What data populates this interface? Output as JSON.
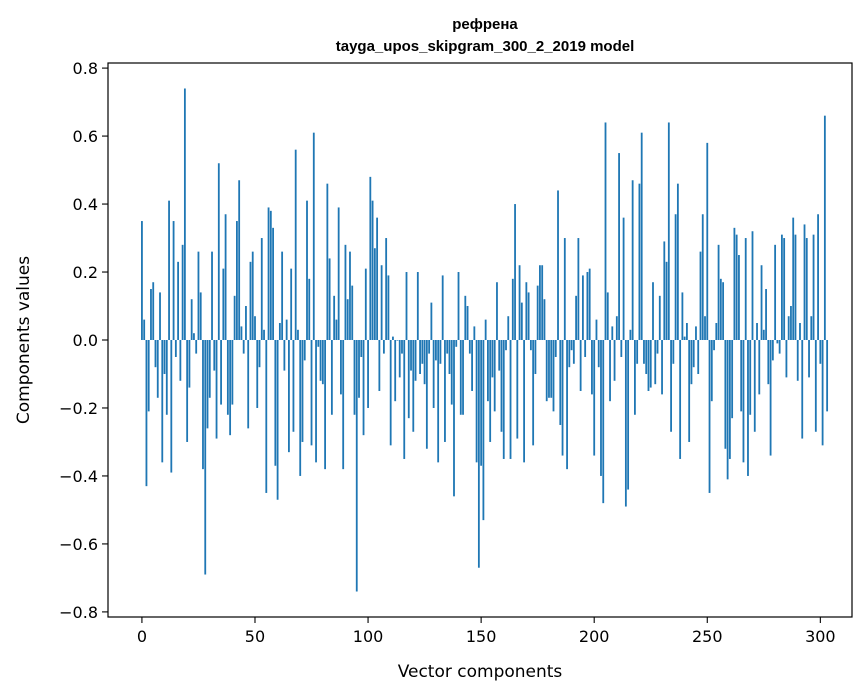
{
  "chart_data": {
    "type": "bar",
    "title": "рефрена",
    "subtitle": "tayga_upos_skipgram_300_2_2019 model",
    "xlabel": "Vector components",
    "ylabel": "Components values",
    "xlim": [
      -15,
      314
    ],
    "ylim": [
      -0.815,
      0.815
    ],
    "xticks": [
      0,
      50,
      100,
      150,
      200,
      250,
      300
    ],
    "xtick_labels": [
      "0",
      "50",
      "100",
      "150",
      "200",
      "250",
      "300"
    ],
    "yticks": [
      -0.8,
      -0.6,
      -0.4,
      -0.2,
      0.0,
      0.2,
      0.4,
      0.6,
      0.8
    ],
    "ytick_labels": [
      "−0.8",
      "−0.6",
      "−0.4",
      "−0.2",
      "0.0",
      "0.2",
      "0.4",
      "0.6",
      "0.8"
    ],
    "bar_color": "#1f77b4",
    "grid": false,
    "x_start": 0,
    "values": [
      0.35,
      0.06,
      -0.43,
      -0.21,
      0.15,
      0.17,
      -0.08,
      -0.17,
      0.14,
      -0.36,
      -0.1,
      -0.22,
      0.41,
      -0.39,
      0.35,
      -0.05,
      0.23,
      -0.12,
      0.28,
      0.74,
      -0.3,
      -0.14,
      0.12,
      0.02,
      -0.04,
      0.26,
      0.14,
      -0.38,
      -0.69,
      -0.26,
      -0.17,
      0.26,
      -0.09,
      -0.29,
      0.52,
      -0.19,
      0.21,
      0.37,
      -0.22,
      -0.28,
      -0.19,
      0.13,
      0.35,
      0.47,
      0.04,
      -0.04,
      0.1,
      -0.26,
      0.23,
      0.26,
      0.07,
      -0.2,
      -0.08,
      0.3,
      0.03,
      -0.45,
      0.39,
      0.38,
      0.33,
      -0.37,
      -0.47,
      0.05,
      0.26,
      -0.09,
      0.06,
      -0.33,
      0.21,
      -0.27,
      0.56,
      0.03,
      -0.4,
      -0.3,
      -0.06,
      0.41,
      0.18,
      -0.31,
      0.61,
      -0.36,
      -0.02,
      -0.12,
      -0.13,
      -0.38,
      0.46,
      0.24,
      -0.22,
      0.13,
      0.06,
      0.39,
      -0.16,
      -0.38,
      0.28,
      0.12,
      0.26,
      0.16,
      -0.22,
      -0.74,
      -0.17,
      -0.05,
      -0.28,
      0.21,
      -0.2,
      0.48,
      0.41,
      0.27,
      0.36,
      -0.15,
      0.22,
      -0.04,
      0.3,
      0.19,
      -0.31,
      0.01,
      -0.18,
      0.0,
      -0.11,
      -0.04,
      -0.35,
      0.2,
      -0.23,
      -0.09,
      -0.27,
      -0.12,
      0.2,
      -0.1,
      -0.07,
      -0.13,
      -0.32,
      -0.04,
      0.11,
      -0.2,
      -0.06,
      -0.36,
      -0.07,
      0.19,
      -0.3,
      -0.04,
      -0.1,
      -0.19,
      -0.46,
      -0.02,
      0.2,
      -0.22,
      -0.22,
      0.13,
      0.1,
      -0.04,
      -0.15,
      0.04,
      -0.36,
      -0.67,
      -0.37,
      -0.53,
      0.06,
      -0.18,
      -0.3,
      -0.11,
      -0.21,
      0.17,
      -0.09,
      -0.27,
      -0.35,
      -0.03,
      0.07,
      -0.35,
      0.18,
      0.4,
      -0.29,
      0.22,
      0.11,
      -0.36,
      0.17,
      0.14,
      -0.03,
      -0.31,
      -0.1,
      0.16,
      0.22,
      0.22,
      0.12,
      -0.18,
      -0.17,
      -0.17,
      -0.21,
      -0.05,
      0.44,
      -0.25,
      -0.34,
      0.3,
      -0.38,
      -0.08,
      -0.03,
      -0.07,
      0.13,
      0.3,
      -0.15,
      0.19,
      -0.05,
      0.2,
      0.21,
      -0.16,
      -0.34,
      0.06,
      -0.08,
      -0.4,
      -0.48,
      0.64,
      0.14,
      -0.18,
      0.04,
      -0.12,
      0.07,
      0.55,
      -0.05,
      0.36,
      -0.49,
      -0.44,
      0.03,
      0.47,
      -0.22,
      -0.07,
      0.46,
      0.61,
      -0.07,
      -0.1,
      -0.15,
      -0.14,
      0.17,
      -0.13,
      -0.04,
      0.13,
      -0.16,
      0.29,
      0.23,
      0.64,
      -0.27,
      -0.07,
      0.37,
      0.46,
      -0.35,
      0.14,
      0.01,
      0.05,
      -0.3,
      -0.13,
      -0.08,
      0.04,
      -0.1,
      0.26,
      0.37,
      0.07,
      0.58,
      -0.45,
      -0.18,
      -0.03,
      0.05,
      0.28,
      0.18,
      0.17,
      -0.32,
      -0.41,
      -0.35,
      -0.23,
      0.33,
      0.31,
      0.25,
      -0.21,
      -0.36,
      0.3,
      -0.4,
      -0.22,
      0.32,
      -0.27,
      0.05,
      -0.16,
      0.22,
      0.03,
      0.15,
      -0.13,
      -0.34,
      -0.06,
      0.28,
      -0.01,
      -0.04,
      0.31,
      0.3,
      -0.11,
      0.07,
      0.1,
      0.36,
      0.31,
      -0.12,
      0.05,
      -0.29,
      0.34,
      0.3,
      -0.11,
      0.07,
      0.31,
      -0.27,
      0.37,
      -0.07,
      -0.31,
      0.66,
      -0.21
    ]
  }
}
